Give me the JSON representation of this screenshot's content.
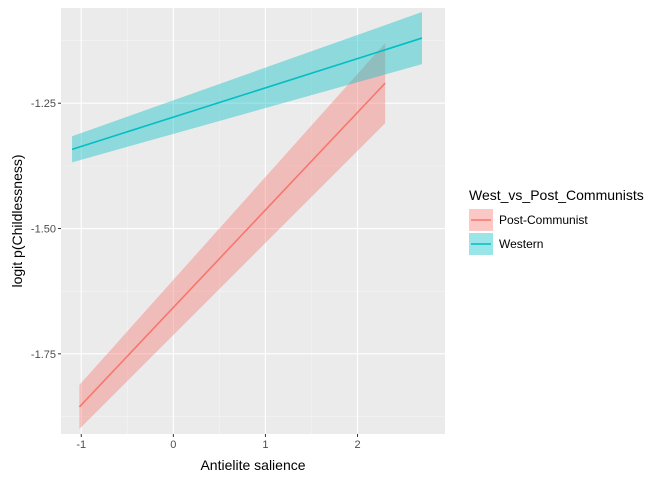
{
  "chart_data": {
    "type": "line",
    "xlabel": "Antielite salience",
    "ylabel": "logit p(Childlessness)",
    "xlim": [
      -1.22,
      2.95
    ],
    "ylim": [
      -1.91,
      -1.06
    ],
    "x_ticks": [
      -1,
      0,
      1,
      2
    ],
    "y_ticks": [
      -1.25,
      -1.5,
      -1.75
    ],
    "x_tick_labels": [
      "-1",
      "0",
      "1",
      "2"
    ],
    "y_tick_labels": [
      "-1.25",
      "-1.50",
      "-1.75"
    ],
    "grid": true,
    "legend": {
      "title": "West_vs_Post_Communists",
      "position": "right"
    },
    "series": [
      {
        "name": "Post-Communist",
        "color": "#F8766D",
        "x": [
          -1.02,
          2.3
        ],
        "y": [
          -1.856,
          -1.21
        ],
        "ci_lower": [
          -1.9,
          -1.29
        ],
        "ci_upper": [
          -1.812,
          -1.13
        ]
      },
      {
        "name": "Western",
        "color": "#00BFC4",
        "x": [
          -1.1,
          2.7
        ],
        "y": [
          -1.342,
          -1.12
        ],
        "ci_lower": [
          -1.368,
          -1.172
        ],
        "ci_upper": [
          -1.316,
          -1.068
        ]
      }
    ]
  }
}
